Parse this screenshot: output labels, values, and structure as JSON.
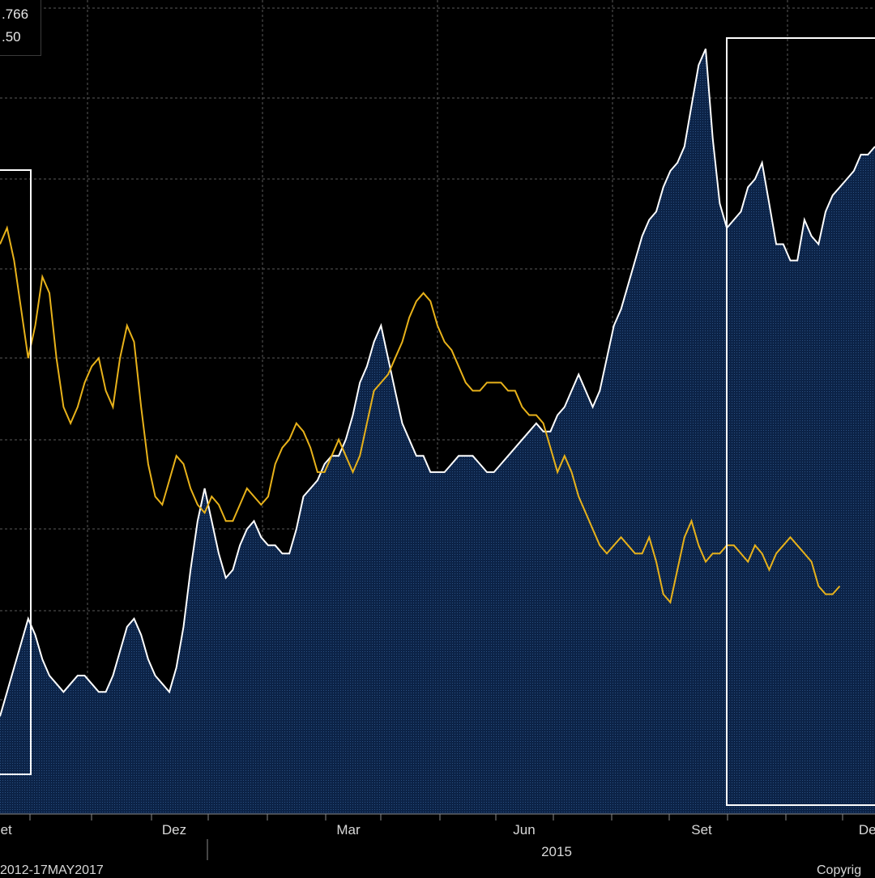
{
  "legend": {
    "value_1": ".766",
    "value_2": ".50"
  },
  "footer": {
    "date_range": "2012-17MAY2017",
    "copyright": "Copyrig"
  },
  "chart_data": {
    "type": "line",
    "title": "",
    "xlabel": "",
    "ylabel": "",
    "x_ticks": [
      "Set",
      "Dez",
      "Mar",
      "Jun",
      "Set",
      "Dez"
    ],
    "year_label": "2015",
    "grid": true,
    "colors": {
      "background": "#000000",
      "area_fill": "#0f2a4f",
      "series_1": "#ffffff",
      "series_2": "#e8b21a",
      "highlight": "#ffffff"
    },
    "series": [
      {
        "values": [
          0.12,
          0.15,
          0.18,
          0.21,
          0.24,
          0.22,
          0.19,
          0.17,
          0.16,
          0.15,
          0.16,
          0.17,
          0.17,
          0.16,
          0.15,
          0.15,
          0.17,
          0.2,
          0.23,
          0.24,
          0.22,
          0.19,
          0.17,
          0.16,
          0.15,
          0.18,
          0.23,
          0.3,
          0.36,
          0.4,
          0.36,
          0.32,
          0.29,
          0.3,
          0.33,
          0.35,
          0.36,
          0.34,
          0.33,
          0.33,
          0.32,
          0.32,
          0.35,
          0.39,
          0.4,
          0.41,
          0.43,
          0.44,
          0.44,
          0.46,
          0.49,
          0.53,
          0.55,
          0.58,
          0.6,
          0.56,
          0.52,
          0.48,
          0.46,
          0.44,
          0.44,
          0.42,
          0.42,
          0.42,
          0.43,
          0.44,
          0.44,
          0.44,
          0.43,
          0.42,
          0.42,
          0.43,
          0.44,
          0.45,
          0.46,
          0.47,
          0.48,
          0.47,
          0.47,
          0.49,
          0.5,
          0.52,
          0.54,
          0.52,
          0.5,
          0.52,
          0.56,
          0.6,
          0.62,
          0.65,
          0.68,
          0.71,
          0.73,
          0.74,
          0.77,
          0.79,
          0.8,
          0.82,
          0.87,
          0.92,
          0.94,
          0.83,
          0.75,
          0.72,
          0.73,
          0.74,
          0.77,
          0.78,
          0.8,
          0.75,
          0.7,
          0.7,
          0.68,
          0.68,
          0.73,
          0.71,
          0.7,
          0.74,
          0.76,
          0.77,
          0.78,
          0.79,
          0.81,
          0.81,
          0.82
        ]
      },
      {
        "values": [
          0.7,
          0.72,
          0.68,
          0.62,
          0.56,
          0.6,
          0.66,
          0.64,
          0.56,
          0.5,
          0.48,
          0.5,
          0.53,
          0.55,
          0.56,
          0.52,
          0.5,
          0.56,
          0.6,
          0.58,
          0.5,
          0.43,
          0.39,
          0.38,
          0.41,
          0.44,
          0.43,
          0.4,
          0.38,
          0.37,
          0.39,
          0.38,
          0.36,
          0.36,
          0.38,
          0.4,
          0.39,
          0.38,
          0.39,
          0.43,
          0.45,
          0.46,
          0.48,
          0.47,
          0.45,
          0.42,
          0.42,
          0.44,
          0.46,
          0.44,
          0.42,
          0.44,
          0.48,
          0.52,
          0.53,
          0.54,
          0.56,
          0.58,
          0.61,
          0.63,
          0.64,
          0.63,
          0.6,
          0.58,
          0.57,
          0.55,
          0.53,
          0.52,
          0.52,
          0.53,
          0.53,
          0.53,
          0.52,
          0.52,
          0.5,
          0.49,
          0.49,
          0.48,
          0.45,
          0.42,
          0.44,
          0.42,
          0.39,
          0.37,
          0.35,
          0.33,
          0.32,
          0.33,
          0.34,
          0.33,
          0.32,
          0.32,
          0.34,
          0.31,
          0.27,
          0.26,
          0.3,
          0.34,
          0.36,
          0.33,
          0.31,
          0.32,
          0.32,
          0.33,
          0.33,
          0.32,
          0.31,
          0.33,
          0.32,
          0.3,
          0.32,
          0.33,
          0.34,
          0.33,
          0.32,
          0.31,
          0.28,
          0.27,
          0.27,
          0.28
        ]
      }
    ],
    "highlight_boxes": [
      {
        "from": "Set 2014",
        "to": "Out 2014"
      },
      {
        "from": "Set 2015",
        "to": "Dez 2015"
      }
    ]
  }
}
